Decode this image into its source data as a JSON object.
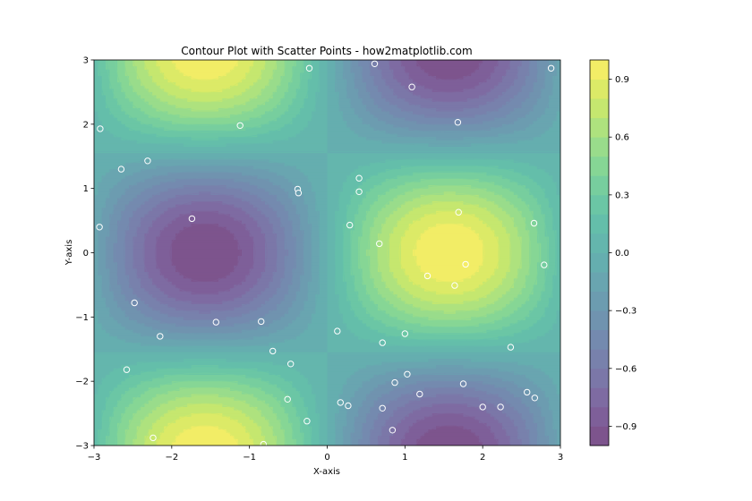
{
  "chart_data": {
    "type": "contour",
    "title": "Contour Plot with Scatter Points - how2matplotlib.com",
    "xlabel": "X-axis",
    "ylabel": "Y-axis",
    "xlim": [
      -3,
      3
    ],
    "ylim": [
      -3,
      3
    ],
    "x_ticks": [
      -3,
      -2,
      -1,
      0,
      1,
      2,
      3
    ],
    "y_ticks": [
      -3,
      -2,
      -1,
      0,
      1,
      2,
      3
    ],
    "function": "sin(x) * cos(y)",
    "levels": 20,
    "colormap": "viridis",
    "alpha": 0.7,
    "colorbar": {
      "range": [
        -1,
        1
      ],
      "ticks": [
        "0.9",
        "0.6",
        "0.3",
        "0.0",
        "-0.3",
        "-0.6",
        "-0.9"
      ],
      "tick_values": [
        0.9,
        0.6,
        0.3,
        0.0,
        -0.3,
        -0.6,
        -0.9
      ]
    },
    "scatter_points": [
      [
        -2.92,
        1.93
      ],
      [
        -2.93,
        0.4
      ],
      [
        -2.65,
        1.3
      ],
      [
        -2.31,
        1.43
      ],
      [
        -1.74,
        0.53
      ],
      [
        -2.48,
        -0.78
      ],
      [
        -2.15,
        -1.3
      ],
      [
        -1.43,
        -1.08
      ],
      [
        -0.85,
        -1.07
      ],
      [
        -0.7,
        -1.53
      ],
      [
        -0.47,
        -1.73
      ],
      [
        -2.58,
        -1.82
      ],
      [
        -0.51,
        -2.28
      ],
      [
        -0.26,
        -2.62
      ],
      [
        -2.24,
        -2.88
      ],
      [
        -0.82,
        -2.98
      ],
      [
        -1.12,
        1.98
      ],
      [
        -0.23,
        2.87
      ],
      [
        -0.38,
        0.99
      ],
      [
        -0.37,
        0.93
      ],
      [
        0.61,
        2.94
      ],
      [
        1.09,
        2.58
      ],
      [
        1.68,
        2.03
      ],
      [
        2.88,
        2.87
      ],
      [
        0.41,
        1.16
      ],
      [
        0.41,
        0.95
      ],
      [
        0.29,
        0.43
      ],
      [
        0.67,
        0.14
      ],
      [
        1.69,
        0.63
      ],
      [
        2.66,
        0.46
      ],
      [
        1.29,
        -0.36
      ],
      [
        1.78,
        -0.18
      ],
      [
        1.64,
        -0.51
      ],
      [
        2.79,
        -0.19
      ],
      [
        0.13,
        -1.22
      ],
      [
        0.71,
        -1.4
      ],
      [
        1.0,
        -1.26
      ],
      [
        2.36,
        -1.47
      ],
      [
        0.87,
        -2.02
      ],
      [
        1.03,
        -1.89
      ],
      [
        1.19,
        -2.2
      ],
      [
        1.75,
        -2.04
      ],
      [
        0.17,
        -2.33
      ],
      [
        0.27,
        -2.38
      ],
      [
        0.71,
        -2.42
      ],
      [
        0.84,
        -2.76
      ],
      [
        2.0,
        -2.4
      ],
      [
        2.23,
        -2.4
      ],
      [
        2.57,
        -2.17
      ],
      [
        2.67,
        -2.26
      ]
    ],
    "scatter_style": {
      "edgecolor": "#ffffff",
      "size": "small"
    }
  }
}
